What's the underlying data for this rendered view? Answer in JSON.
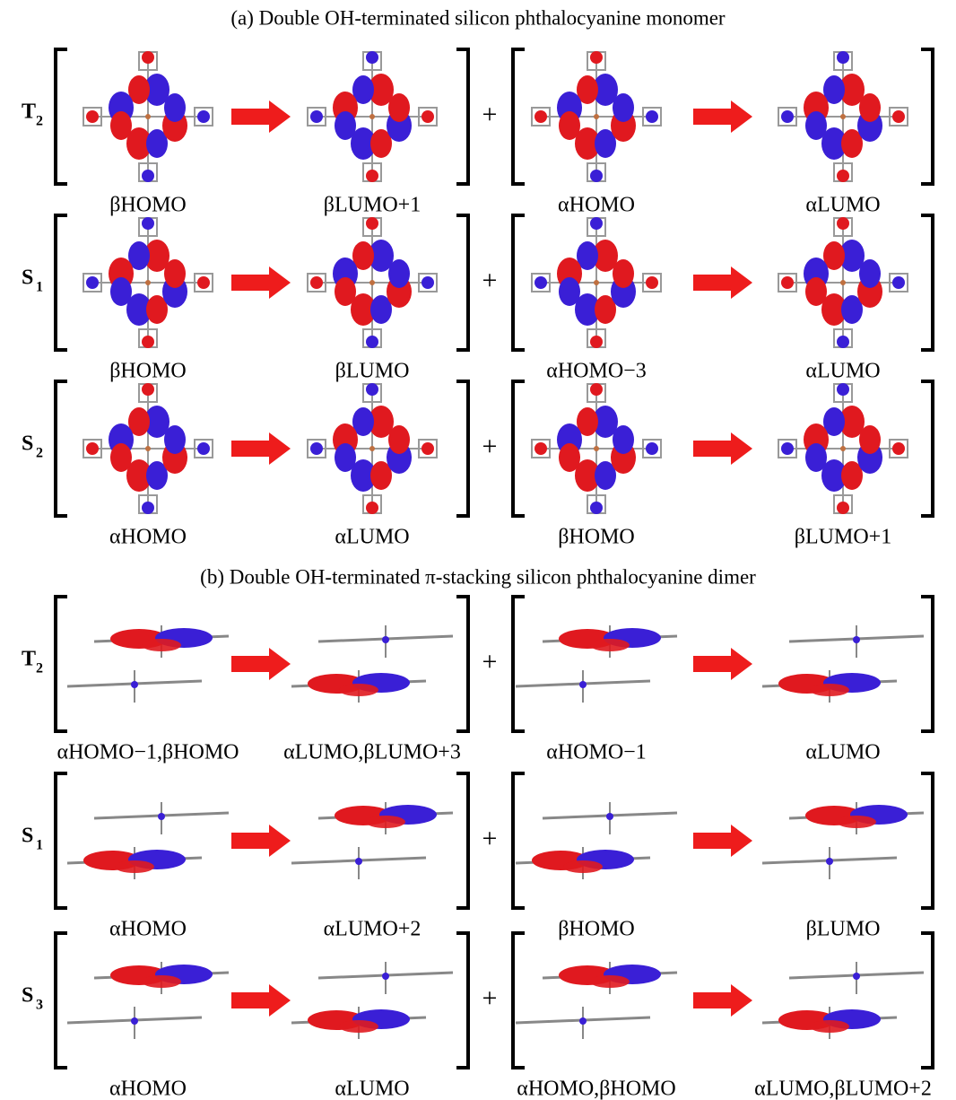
{
  "operator": "+",
  "panels": [
    {
      "title": "(a) Double OH-terminated silicon phthalocyanine monomer",
      "rows": [
        {
          "state": "T",
          "state_sub": "2",
          "labels": [
            "βHOMO",
            "βLUMO+1",
            "αHOMO",
            "αLUMO"
          ]
        },
        {
          "state": "S",
          "state_sub": "1",
          "labels": [
            "βHOMO",
            "βLUMO",
            "αHOMO−3",
            "αLUMO"
          ]
        },
        {
          "state": "S",
          "state_sub": "2",
          "labels": [
            "αHOMO",
            "αLUMO",
            "βHOMO",
            "βLUMO+1"
          ]
        }
      ]
    },
    {
      "title": "(b) Double OH-terminated π-stacking silicon phthalocyanine dimer",
      "rows": [
        {
          "state": "T",
          "state_sub": "2",
          "labels": [
            "αHOMO−1,βHOMO",
            "αLUMO,βLUMO+3",
            "αHOMO−1",
            "αLUMO"
          ]
        },
        {
          "state": "S",
          "state_sub": "1",
          "labels": [
            "αHOMO",
            "αLUMO+2",
            "βHOMO",
            "βLUMO"
          ]
        },
        {
          "state": "S",
          "state_sub": "3",
          "labels": [
            "αHOMO",
            "αLUMO",
            "αHOMO,βHOMO",
            "αLUMO,βLUMO+2"
          ]
        }
      ]
    }
  ]
}
